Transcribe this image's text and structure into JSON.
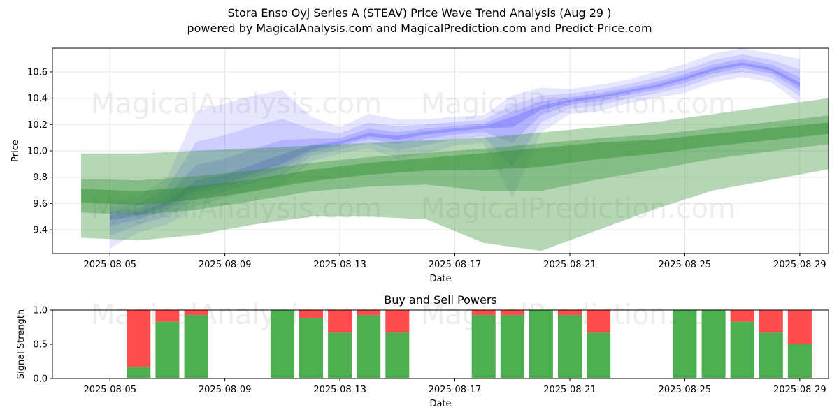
{
  "header": {
    "title": "Stora Enso Oyj Series A (STEAV) Price Wave Trend Analysis (Aug 29 )",
    "subtitle": "powered by MagicalAnalysis.com and MagicalPrediction.com and Predict-Price.com"
  },
  "watermarks": [
    "MagicalAnalysis.com",
    "MagicalPrediction.com"
  ],
  "colors": {
    "blue_band": "#4d4dff",
    "green_band": "#2e8b2e",
    "buy": "#4caf50",
    "sell": "#ff4d4d",
    "grid": "#e6e6e6"
  },
  "chart_data": [
    {
      "type": "area",
      "title": "",
      "xlabel": "Date",
      "ylabel": "Price",
      "x_ticks": [
        "2025-08-05",
        "2025-08-09",
        "2025-08-13",
        "2025-08-17",
        "2025-08-21",
        "2025-08-25",
        "2025-08-29"
      ],
      "y_ticks": [
        "9.4",
        "9.6",
        "9.8",
        "10.0",
        "10.2",
        "10.4",
        "10.6"
      ],
      "xlim": [
        "2025-08-03",
        "2025-08-30"
      ],
      "ylim": [
        9.22,
        10.78
      ],
      "grid": true,
      "series": [
        {
          "color": "blue",
          "x": [
            "2025-08-05",
            "2025-08-06",
            "2025-08-07",
            "2025-08-08",
            "2025-08-09",
            "2025-08-10",
            "2025-08-11",
            "2025-08-12",
            "2025-08-13",
            "2025-08-14",
            "2025-08-15",
            "2025-08-16",
            "2025-08-17",
            "2025-08-18",
            "2025-08-19",
            "2025-08-20",
            "2025-08-21",
            "2025-08-22",
            "2025-08-23",
            "2025-08-24",
            "2025-08-25",
            "2025-08-26",
            "2025-08-27",
            "2025-08-28",
            "2025-08-29"
          ],
          "center": [
            9.5,
            9.52,
            9.6,
            9.72,
            9.76,
            9.84,
            9.92,
            10.02,
            10.06,
            10.12,
            10.1,
            10.14,
            10.16,
            10.18,
            10.24,
            10.33,
            10.38,
            10.41,
            10.45,
            10.49,
            10.55,
            10.62,
            10.66,
            10.62,
            10.5
          ],
          "upper": [
            9.62,
            9.65,
            9.8,
            10.3,
            10.36,
            10.42,
            10.46,
            10.26,
            10.18,
            10.28,
            10.24,
            10.24,
            10.26,
            10.27,
            10.42,
            10.48,
            10.47,
            10.5,
            10.54,
            10.6,
            10.66,
            10.74,
            10.78,
            10.74,
            10.7
          ],
          "lower": [
            9.26,
            9.38,
            9.44,
            9.58,
            9.64,
            9.7,
            9.74,
            9.92,
            9.98,
            10.02,
            9.94,
            9.98,
            10.04,
            10.06,
            9.64,
            10.14,
            10.28,
            10.3,
            10.36,
            10.4,
            10.44,
            10.52,
            10.56,
            10.52,
            10.36
          ]
        },
        {
          "color": "green",
          "x": [
            "2025-08-04",
            "2025-08-06",
            "2025-08-08",
            "2025-08-10",
            "2025-08-12",
            "2025-08-14",
            "2025-08-16",
            "2025-08-18",
            "2025-08-20",
            "2025-08-22",
            "2025-08-24",
            "2025-08-26",
            "2025-08-28",
            "2025-08-30"
          ],
          "center": [
            9.66,
            9.64,
            9.68,
            9.74,
            9.82,
            9.88,
            9.92,
            9.96,
            10.0,
            10.04,
            10.06,
            10.1,
            10.14,
            10.18
          ],
          "upper": [
            9.98,
            9.98,
            10.0,
            10.02,
            10.04,
            10.06,
            10.08,
            10.1,
            10.14,
            10.18,
            10.22,
            10.28,
            10.34,
            10.4
          ],
          "lower": [
            9.34,
            9.32,
            9.36,
            9.44,
            9.5,
            9.5,
            9.48,
            9.3,
            9.24,
            9.4,
            9.56,
            9.7,
            9.78,
            9.86
          ]
        }
      ]
    },
    {
      "type": "bar",
      "title": "Buy and Sell Powers",
      "xlabel": "Date",
      "ylabel": "Signal Strength",
      "x_ticks": [
        "2025-08-05",
        "2025-08-09",
        "2025-08-13",
        "2025-08-17",
        "2025-08-21",
        "2025-08-25",
        "2025-08-29"
      ],
      "y_ticks": [
        "0.0",
        "0.5",
        "1.0"
      ],
      "ylim": [
        0,
        1
      ],
      "categories": [
        "2025-08-06",
        "2025-08-07",
        "2025-08-08",
        "2025-08-11",
        "2025-08-12",
        "2025-08-13",
        "2025-08-14",
        "2025-08-15",
        "2025-08-18",
        "2025-08-19",
        "2025-08-20",
        "2025-08-21",
        "2025-08-22",
        "2025-08-25",
        "2025-08-26",
        "2025-08-27",
        "2025-08-28",
        "2025-08-29"
      ],
      "series": [
        {
          "name": "Buy",
          "values": [
            0.17,
            0.83,
            0.93,
            1.0,
            0.88,
            0.67,
            0.93,
            0.67,
            0.93,
            0.93,
            1.0,
            0.93,
            0.67,
            1.0,
            1.0,
            0.83,
            0.67,
            0.5
          ]
        },
        {
          "name": "Sell",
          "values": [
            0.83,
            0.17,
            0.07,
            0.0,
            0.12,
            0.33,
            0.07,
            0.33,
            0.07,
            0.07,
            0.0,
            0.07,
            0.33,
            0.0,
            0.0,
            0.17,
            0.33,
            0.5
          ]
        }
      ]
    }
  ]
}
